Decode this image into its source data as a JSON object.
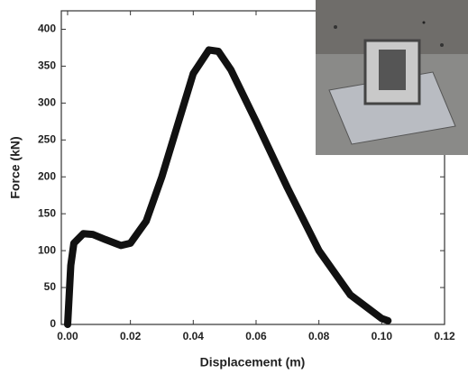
{
  "chart_data": {
    "type": "line",
    "x_label": "Displacement (m)",
    "y_label": "Force (kN)",
    "x": [
      0,
      0.001,
      0.002,
      0.005,
      0.008,
      0.012,
      0.017,
      0.02,
      0.025,
      0.03,
      0.035,
      0.04,
      0.045,
      0.048,
      0.052,
      0.06,
      0.07,
      0.08,
      0.09,
      0.1,
      0.102
    ],
    "series": [
      {
        "color": "#111111",
        "values": [
          0,
          80,
          110,
          123,
          122,
          115,
          107,
          110,
          140,
          200,
          270,
          340,
          372,
          370,
          345,
          275,
          185,
          100,
          40,
          8,
          5
        ]
      }
    ],
    "xlim": [
      -0.002,
      0.12
    ],
    "xticks": [
      {
        "value": 0,
        "label": "0.00"
      },
      {
        "value": 0.02,
        "label": "0.02"
      },
      {
        "value": 0.04,
        "label": "0.04"
      },
      {
        "value": 0.06,
        "label": "0.06"
      },
      {
        "value": 0.08,
        "label": "0.08"
      },
      {
        "value": 0.1,
        "label": "0.10"
      },
      {
        "value": 0.12,
        "label": "0.12"
      }
    ],
    "ylim": [
      0,
      425
    ],
    "yticks": [
      0,
      50,
      100,
      150,
      200,
      250,
      300,
      350,
      400
    ]
  }
}
